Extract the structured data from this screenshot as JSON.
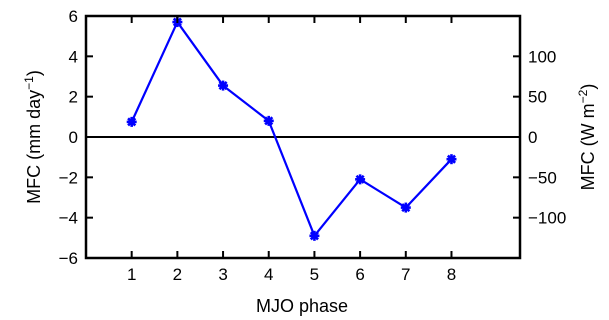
{
  "chart_data": {
    "type": "line",
    "x": [
      1,
      2,
      3,
      4,
      5,
      6,
      7,
      8
    ],
    "series": [
      {
        "values": [
          0.75,
          5.7,
          2.55,
          0.8,
          -4.9,
          -2.1,
          -3.5,
          -1.1
        ],
        "color": "#0000ff",
        "marker": "star"
      }
    ],
    "xlabel": "MJO phase",
    "ylabel_left": {
      "main": "MFC (mm day",
      "sup": "−1",
      "close": ")"
    },
    "ylabel_right": {
      "main": "MFC (W m",
      "sup": "−2",
      "close": ")"
    },
    "xlim": [
      0,
      9.5
    ],
    "ylim_left": [
      -6,
      6
    ],
    "ylim_right": [
      -150,
      150
    ],
    "xticks": [
      1,
      2,
      3,
      4,
      5,
      6,
      7,
      8
    ],
    "yticks_left": [
      -6,
      -4,
      -2,
      0,
      2,
      4,
      6
    ],
    "yticks_right": [
      -100,
      -50,
      0,
      50,
      100
    ],
    "xtick_labels": [
      "1",
      "2",
      "3",
      "4",
      "5",
      "6",
      "7",
      "8"
    ],
    "ytick_labels_left": [
      "−6",
      "−4",
      "−2",
      "0",
      "2",
      "4",
      "6"
    ],
    "ytick_labels_right": [
      "−100",
      "−50",
      "0",
      "50",
      "100"
    ],
    "zero_line": true,
    "grid": false
  }
}
